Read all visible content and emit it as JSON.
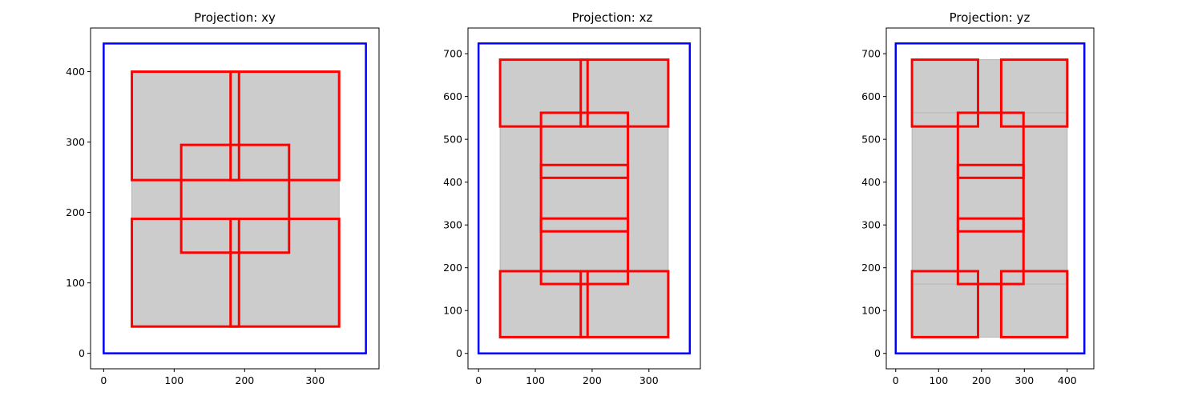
{
  "chart_data": [
    {
      "type": "rectangles",
      "title": "Projection: xy",
      "xlabel": "",
      "ylabel": "",
      "xlim": [
        -18.6,
        390.6
      ],
      "ylim": [
        -22,
        462
      ],
      "xticks": [
        0,
        100,
        200,
        300
      ],
      "yticks": [
        0,
        100,
        200,
        300,
        400
      ],
      "grid": false,
      "colors": {
        "fill": "#cccccc",
        "box": "#ff0000",
        "boundary": "#0000ff"
      },
      "boundary": {
        "x0": 0,
        "y0": 0,
        "x1": 372,
        "y1": 440
      },
      "fill_regions": [
        {
          "x0": 40,
          "y0": 38,
          "x1": 334,
          "y1": 400
        }
      ],
      "boxes": [
        {
          "x0": 40,
          "y0": 246,
          "x1": 334,
          "y1": 400
        },
        {
          "x0": 180,
          "y0": 246,
          "x1": 192,
          "y1": 400
        },
        {
          "x0": 110,
          "y0": 143,
          "x1": 263,
          "y1": 296
        },
        {
          "x0": 40,
          "y0": 38,
          "x1": 334,
          "y1": 191
        },
        {
          "x0": 180,
          "y0": 38,
          "x1": 192,
          "y1": 191
        }
      ]
    },
    {
      "type": "rectangles",
      "title": "Projection: xz",
      "xlabel": "",
      "ylabel": "",
      "xlim": [
        -18.6,
        390.6
      ],
      "ylim": [
        -36,
        760
      ],
      "xticks": [
        0,
        100,
        200,
        300
      ],
      "yticks": [
        0,
        100,
        200,
        300,
        400,
        500,
        600,
        700
      ],
      "grid": false,
      "colors": {
        "fill": "#cccccc",
        "box": "#ff0000",
        "boundary": "#0000ff"
      },
      "boundary": {
        "x0": 0,
        "y0": 0,
        "x1": 372,
        "y1": 724
      },
      "fill_regions": [
        {
          "x0": 38,
          "y0": 38,
          "x1": 334,
          "y1": 686
        }
      ],
      "boxes": [
        {
          "x0": 38,
          "y0": 530,
          "x1": 334,
          "y1": 686
        },
        {
          "x0": 180,
          "y0": 530,
          "x1": 192,
          "y1": 686
        },
        {
          "x0": 110,
          "y0": 162,
          "x1": 263,
          "y1": 562
        },
        {
          "x0": 110,
          "y0": 410,
          "x1": 263,
          "y1": 440
        },
        {
          "x0": 110,
          "y0": 285,
          "x1": 263,
          "y1": 315
        },
        {
          "x0": 38,
          "y0": 38,
          "x1": 334,
          "y1": 192
        },
        {
          "x0": 180,
          "y0": 38,
          "x1": 192,
          "y1": 192
        }
      ]
    },
    {
      "type": "rectangles",
      "title": "Projection: yz",
      "xlabel": "",
      "ylabel": "",
      "xlim": [
        -22,
        462
      ],
      "ylim": [
        -36,
        760
      ],
      "xticks": [
        0,
        100,
        200,
        300,
        400
      ],
      "yticks": [
        0,
        100,
        200,
        300,
        400,
        500,
        600,
        700
      ],
      "grid": false,
      "colors": {
        "fill": "#cccccc",
        "box": "#ff0000",
        "boundary": "#0000ff"
      },
      "boundary": {
        "x0": 0,
        "y0": 0,
        "x1": 440,
        "y1": 724
      },
      "fill_regions": [
        {
          "x0": 38,
          "y0": 530,
          "x1": 400,
          "y1": 686
        },
        {
          "x0": 38,
          "y0": 38,
          "x1": 400,
          "y1": 192
        },
        {
          "x0": 38,
          "y0": 162,
          "x1": 400,
          "y1": 562
        }
      ],
      "boxes": [
        {
          "x0": 38,
          "y0": 530,
          "x1": 192,
          "y1": 686
        },
        {
          "x0": 246,
          "y0": 530,
          "x1": 400,
          "y1": 686
        },
        {
          "x0": 145,
          "y0": 162,
          "x1": 298,
          "y1": 562
        },
        {
          "x0": 145,
          "y0": 410,
          "x1": 298,
          "y1": 440
        },
        {
          "x0": 145,
          "y0": 285,
          "x1": 298,
          "y1": 315
        },
        {
          "x0": 38,
          "y0": 38,
          "x1": 192,
          "y1": 192
        },
        {
          "x0": 246,
          "y0": 38,
          "x1": 400,
          "y1": 192
        }
      ]
    }
  ]
}
